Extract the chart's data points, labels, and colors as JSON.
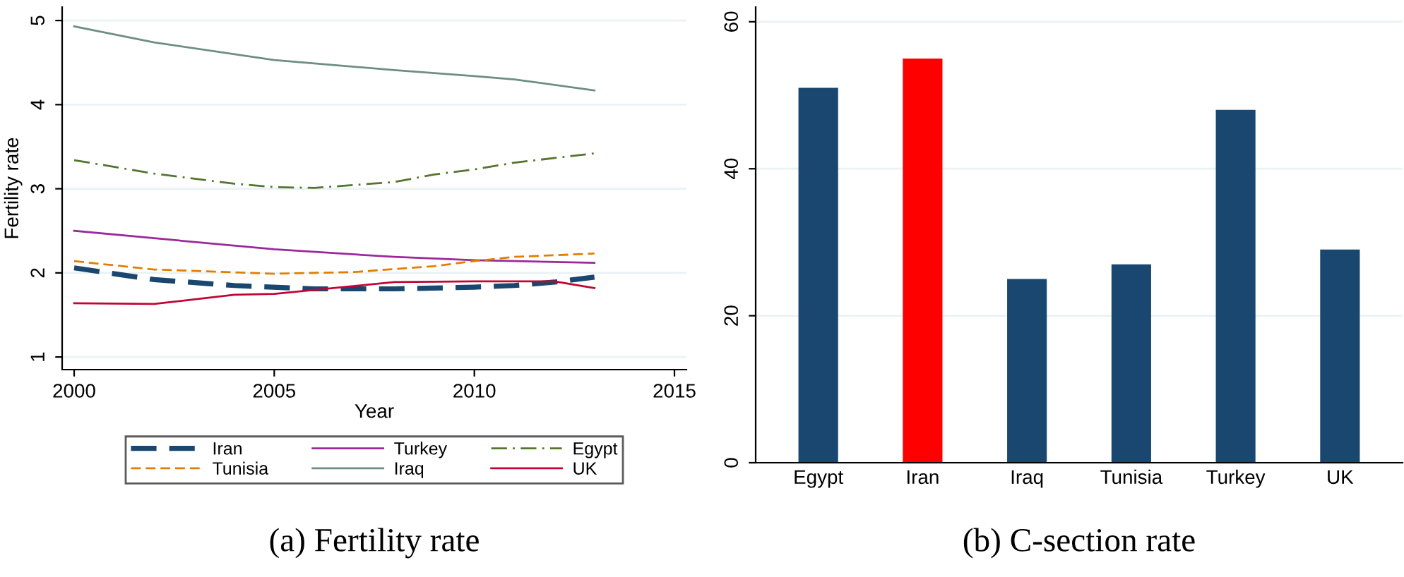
{
  "chart_data": [
    {
      "type": "line",
      "title": "(a) Fertility rate",
      "xlabel": "Year",
      "ylabel": "Fertility rate",
      "xlim": [
        1999.7,
        2015.3
      ],
      "ylim": [
        0.85,
        5.16
      ],
      "xticks": [
        2000,
        2005,
        2010,
        2015
      ],
      "yticks": [
        1,
        2,
        3,
        4,
        5
      ],
      "grid": "y",
      "legend": "bottom",
      "series": [
        {
          "name": "Iran",
          "color": "#1a476f",
          "line_style": "dashed",
          "x": [
            2000,
            2002,
            2004,
            2006,
            2008,
            2010,
            2011,
            2012,
            2013
          ],
          "values": [
            2.06,
            1.92,
            1.85,
            1.81,
            1.81,
            1.83,
            1.85,
            1.89,
            1.95
          ]
        },
        {
          "name": "Turkey",
          "color": "#9a2a9a",
          "line_style": "solid",
          "x": [
            2000,
            2005,
            2008,
            2010,
            2013
          ],
          "values": [
            2.5,
            2.28,
            2.19,
            2.15,
            2.12
          ]
        },
        {
          "name": "Egypt",
          "color": "#55752f",
          "line_style": "dashdot",
          "x": [
            2000,
            2002,
            2004,
            2005,
            2006,
            2008,
            2009,
            2010,
            2011,
            2013
          ],
          "values": [
            3.34,
            3.18,
            3.06,
            3.02,
            3.01,
            3.08,
            3.17,
            3.23,
            3.31,
            3.42
          ]
        },
        {
          "name": "Tunisia",
          "color": "#e37e00",
          "line_style": "dashed",
          "x": [
            2000,
            2002,
            2005,
            2007,
            2009,
            2010,
            2011,
            2013
          ],
          "values": [
            2.14,
            2.04,
            1.99,
            2.01,
            2.08,
            2.14,
            2.19,
            2.23
          ]
        },
        {
          "name": "Iraq",
          "color": "#6e8e84",
          "line_style": "solid",
          "x": [
            2000,
            2002,
            2005,
            2008,
            2010,
            2011,
            2013
          ],
          "values": [
            4.93,
            4.74,
            4.53,
            4.41,
            4.34,
            4.3,
            4.17
          ]
        },
        {
          "name": "UK",
          "color": "#c10534",
          "line_style": "solid",
          "x": [
            2000,
            2002,
            2004,
            2005,
            2008,
            2010,
            2012,
            2013
          ],
          "values": [
            1.64,
            1.63,
            1.74,
            1.75,
            1.89,
            1.9,
            1.9,
            1.82
          ]
        }
      ]
    },
    {
      "type": "bar",
      "title": "(b) C-section rate",
      "categories": [
        "Egypt",
        "Iran",
        "Iraq",
        "Tunisia",
        "Turkey",
        "UK"
      ],
      "values": [
        51,
        55,
        25,
        27,
        48,
        29
      ],
      "colors": [
        "#1a476f",
        "#ff0000",
        "#1a476f",
        "#1a476f",
        "#1a476f",
        "#1a476f"
      ],
      "ylim": [
        0,
        62
      ],
      "yticks": [
        0,
        20,
        40,
        60
      ],
      "grid": "y"
    }
  ]
}
